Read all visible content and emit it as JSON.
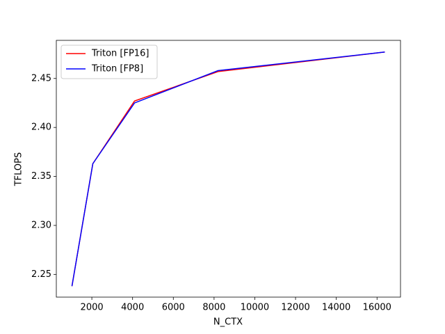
{
  "chart_data": {
    "type": "line",
    "x_label": "N_CTX",
    "y_label": "TFLOPS",
    "x": [
      1024,
      2048,
      4096,
      8192,
      16384
    ],
    "series": [
      {
        "name": "Triton [FP16]",
        "color": "#ff0000",
        "values": [
          2.238,
          2.363,
          2.427,
          2.457,
          2.477
        ]
      },
      {
        "name": "Triton [FP8]",
        "color": "#0000ff",
        "values": [
          2.238,
          2.363,
          2.425,
          2.458,
          2.477
        ]
      }
    ],
    "xlim": [
      256,
      17152
    ],
    "xticks": [
      2000,
      4000,
      6000,
      8000,
      10000,
      12000,
      14000,
      16000
    ],
    "ylim": [
      2.2268,
      2.4889
    ],
    "yticks": [
      2.25,
      2.3,
      2.35,
      2.4,
      2.45
    ],
    "legend": "upper left"
  }
}
